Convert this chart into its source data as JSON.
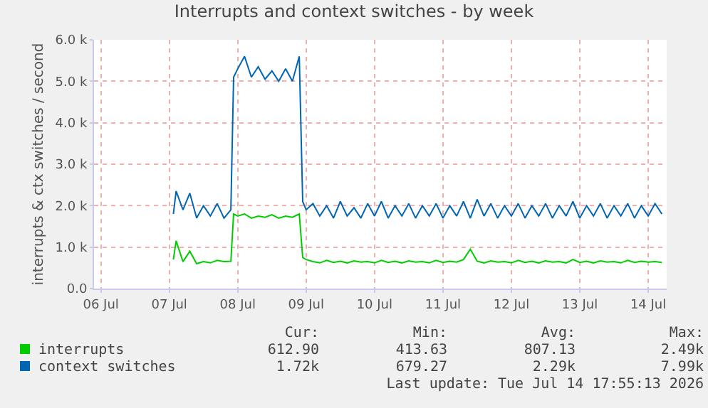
{
  "chart_data": {
    "type": "line",
    "title": "Interrupts and context switches - by week",
    "ylabel": "interrupts & ctx switches / second",
    "x": [
      "2026-07-07T01:26",
      "2026-07-07T02:24",
      "2026-07-07T04:48",
      "2026-07-07T07:12",
      "2026-07-07T09:36",
      "2026-07-07T12:00",
      "2026-07-07T14:24",
      "2026-07-07T16:48",
      "2026-07-07T19:12",
      "2026-07-07T21:36",
      "2026-07-07T22:34",
      "2026-07-08T00:00",
      "2026-07-08T02:24",
      "2026-07-08T04:48",
      "2026-07-08T07:12",
      "2026-07-08T09:36",
      "2026-07-08T12:00",
      "2026-07-08T14:24",
      "2026-07-08T16:48",
      "2026-07-08T19:12",
      "2026-07-08T21:36",
      "2026-07-08T22:48",
      "2026-07-09T00:00",
      "2026-07-09T02:24",
      "2026-07-09T04:48",
      "2026-07-09T07:12",
      "2026-07-09T09:36",
      "2026-07-09T12:00",
      "2026-07-09T14:24",
      "2026-07-09T16:48",
      "2026-07-09T19:12",
      "2026-07-09T21:36",
      "2026-07-10T00:00",
      "2026-07-10T02:24",
      "2026-07-10T04:48",
      "2026-07-10T07:12",
      "2026-07-10T09:36",
      "2026-07-10T12:00",
      "2026-07-10T14:24",
      "2026-07-10T16:48",
      "2026-07-10T19:12",
      "2026-07-10T21:36",
      "2026-07-11T00:00",
      "2026-07-11T02:24",
      "2026-07-11T04:48",
      "2026-07-11T07:12",
      "2026-07-11T09:36",
      "2026-07-11T12:00",
      "2026-07-11T14:24",
      "2026-07-11T16:48",
      "2026-07-11T19:12",
      "2026-07-11T21:36",
      "2026-07-12T00:00",
      "2026-07-12T02:24",
      "2026-07-12T04:48",
      "2026-07-12T07:12",
      "2026-07-12T09:36",
      "2026-07-12T12:00",
      "2026-07-12T14:24",
      "2026-07-12T16:48",
      "2026-07-12T19:12",
      "2026-07-12T21:36",
      "2026-07-13T00:00",
      "2026-07-13T02:24",
      "2026-07-13T04:48",
      "2026-07-13T07:12",
      "2026-07-13T09:36",
      "2026-07-13T12:00",
      "2026-07-13T14:24",
      "2026-07-13T16:48",
      "2026-07-13T19:12",
      "2026-07-13T21:36",
      "2026-07-14T00:00",
      "2026-07-14T02:24",
      "2026-07-14T04:48"
    ],
    "series": [
      {
        "name": "interrupts",
        "color": "#00cc00",
        "values": [
          700,
          1150,
          650,
          900,
          600,
          650,
          620,
          680,
          650,
          660,
          1800,
          1750,
          1800,
          1700,
          1750,
          1720,
          1780,
          1700,
          1750,
          1720,
          1800,
          750,
          700,
          650,
          620,
          680,
          630,
          660,
          620,
          670,
          640,
          650,
          620,
          680,
          630,
          660,
          620,
          670,
          640,
          650,
          620,
          680,
          630,
          660,
          640,
          700,
          950,
          660,
          620,
          670,
          640,
          650,
          620,
          680,
          630,
          660,
          620,
          670,
          640,
          650,
          620,
          700,
          630,
          660,
          620,
          670,
          640,
          650,
          620,
          680,
          630,
          660,
          640,
          650,
          630
        ]
      },
      {
        "name": "context switches",
        "color": "#0066b3",
        "values": [
          1800,
          2350,
          1900,
          2300,
          1700,
          2000,
          1750,
          2050,
          1700,
          1900,
          5100,
          5300,
          5600,
          5100,
          5350,
          5050,
          5250,
          5000,
          5300,
          5000,
          5600,
          2100,
          1900,
          2050,
          1750,
          2000,
          1700,
          2100,
          1750,
          1950,
          1700,
          2050,
          1750,
          2100,
          1700,
          2000,
          1750,
          2050,
          1700,
          2000,
          1750,
          2050,
          1700,
          2000,
          1750,
          2100,
          1700,
          2150,
          1750,
          2050,
          1700,
          2000,
          1750,
          2050,
          1700,
          2000,
          1750,
          2050,
          1700,
          2000,
          1750,
          2100,
          1700,
          2000,
          1750,
          2050,
          1700,
          2000,
          1750,
          2050,
          1700,
          2000,
          1750,
          2050,
          1800
        ]
      }
    ],
    "xlim": [
      "2026-07-05T21:36",
      "2026-07-14T06:29"
    ],
    "xticks": [
      {
        "value": "2026-07-06",
        "label": "06 Jul"
      },
      {
        "value": "2026-07-07",
        "label": "07 Jul"
      },
      {
        "value": "2026-07-08",
        "label": "08 Jul"
      },
      {
        "value": "2026-07-09",
        "label": "09 Jul"
      },
      {
        "value": "2026-07-10",
        "label": "10 Jul"
      },
      {
        "value": "2026-07-11",
        "label": "11 Jul"
      },
      {
        "value": "2026-07-12",
        "label": "12 Jul"
      },
      {
        "value": "2026-07-13",
        "label": "13 Jul"
      },
      {
        "value": "2026-07-14",
        "label": "14 Jul"
      }
    ],
    "ylim": [
      0,
      6000
    ],
    "yticks": [
      {
        "value": 0,
        "label": "0.0"
      },
      {
        "value": 1000,
        "label": "1.0 k"
      },
      {
        "value": 2000,
        "label": "2.0 k"
      },
      {
        "value": 3000,
        "label": "3.0 k"
      },
      {
        "value": 4000,
        "label": "4.0 k"
      },
      {
        "value": 5000,
        "label": "5.0 k"
      },
      {
        "value": 6000,
        "label": "6.0 k"
      }
    ],
    "grid": true,
    "legend": "bottom",
    "marker": "none",
    "line_style": "solid",
    "annotations": [
      "Cur:",
      "Min:",
      "Avg:",
      "Max:",
      "612.90",
      "413.63",
      "807.13",
      "2.49k",
      "1.72k",
      "679.27",
      "2.29k",
      "7.99k",
      "Last update: Tue Jul 14 17:55:13 2026"
    ]
  }
}
